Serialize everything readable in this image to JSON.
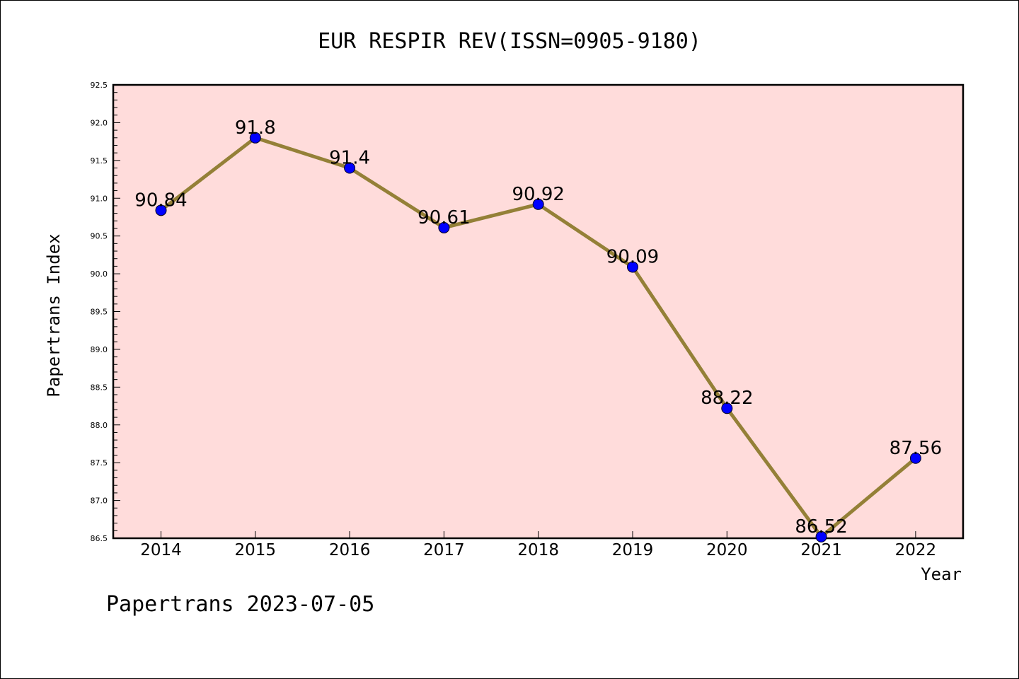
{
  "chart_data": {
    "type": "line",
    "title": "EUR RESPIR REV(ISSN=0905-9180)",
    "xlabel": "Year",
    "ylabel": "Papertrans Index",
    "categories": [
      "2014",
      "2015",
      "2016",
      "2017",
      "2018",
      "2019",
      "2020",
      "2021",
      "2022"
    ],
    "series": [
      {
        "values": [
          90.84,
          91.8,
          91.4,
          90.61,
          90.92,
          90.09,
          88.22,
          86.52,
          87.56
        ],
        "labels": [
          "90.84",
          "91.8",
          "91.4",
          "90.61",
          "90.92",
          "90.09",
          "88.22",
          "86.52",
          "87.56"
        ]
      }
    ],
    "ylim": [
      86.5,
      92.5
    ],
    "yticks": [
      "86.5",
      "87.0",
      "87.5",
      "88.0",
      "88.5",
      "89.0",
      "89.5",
      "90.0",
      "90.5",
      "91.0",
      "91.5",
      "92.0",
      "92.5"
    ],
    "grid": false,
    "colors": {
      "plot_background": "#ffdcdb",
      "line": "#948037",
      "marker": "#0000ff"
    }
  },
  "footer": "Papertrans 2023-07-05"
}
